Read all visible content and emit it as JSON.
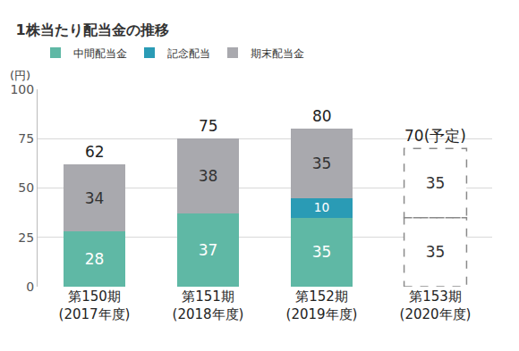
{
  "chart_data": {
    "type": "bar",
    "title": "1株当たり配当金の推移",
    "ylabel": "(円)",
    "categories": [
      "第150期\n(2017年度)",
      "第151期\n(2018年度)",
      "第152期\n(2019年度)",
      "第153期\n(2020年度)"
    ],
    "stacked": true,
    "data_labels": true,
    "series": [
      {
        "name": "中間配当金",
        "colors": [
          "#5fb8a5",
          "#5fb8a5",
          "#5fb8a5",
          "#ffffff"
        ],
        "values": [
          28,
          37,
          35,
          35
        ]
      },
      {
        "name": "記念配当",
        "color": "#2a9bb5",
        "values": [
          null,
          null,
          10,
          null
        ]
      },
      {
        "name": "期末配当金",
        "colors": [
          "#a9a9ae",
          "#a9a9ae",
          "#a9a9ae",
          "#ffffff"
        ],
        "values": [
          34,
          38,
          35,
          35
        ]
      }
    ],
    "totals": {
      "values": [
        62,
        75,
        80,
        70
      ],
      "value_labels": [
        "62",
        "75",
        "80",
        "70(予定)"
      ]
    },
    "ylim": [
      0,
      100
    ],
    "yticks": [
      0,
      25,
      50,
      75,
      100
    ],
    "grid": true,
    "legend": "top left"
  }
}
